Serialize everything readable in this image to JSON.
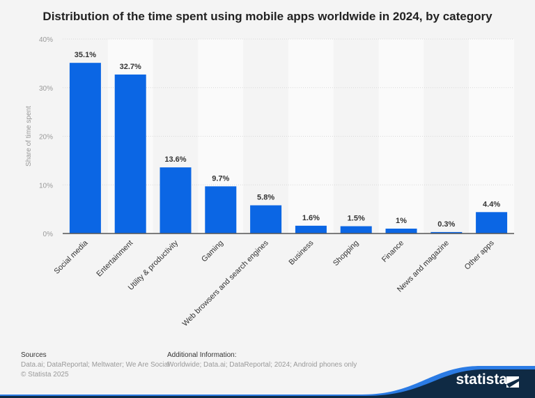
{
  "chart_data": {
    "type": "bar",
    "title": "Distribution of the time spent using mobile apps worldwide in 2024, by category",
    "xlabel": "",
    "ylabel": "Share of time spent",
    "ylim": [
      0,
      40
    ],
    "yticks": [
      "0%",
      "10%",
      "20%",
      "30%",
      "40%"
    ],
    "grid": true,
    "categories": [
      "Social media",
      "Entertainment",
      "Utility & productivity",
      "Gaming",
      "Web browsers and search engines",
      "Business",
      "Shopping",
      "Finance",
      "News and magazine",
      "Other apps"
    ],
    "values": [
      35.1,
      32.7,
      13.6,
      9.7,
      5.8,
      1.6,
      1.5,
      1,
      0.3,
      4.4
    ],
    "data_labels": [
      "35.1%",
      "32.7%",
      "13.6%",
      "9.7%",
      "5.8%",
      "1.6%",
      "1.5%",
      "1%",
      "0.3%",
      "4.4%"
    ],
    "bar_color": "#0b66e4"
  },
  "footer": {
    "sources_heading": "Sources",
    "sources": "Data.ai; DataReportal; Meltwater; We Are Social",
    "copyright": "© Statista 2025",
    "additional_heading": "Additional Information:",
    "additional": "Worldwide; Data.ai; DataReportal; 2024; Android phones only"
  },
  "brand": {
    "logo_text": "statista",
    "color": "#0f2a44",
    "accent": "#2b7be4"
  }
}
